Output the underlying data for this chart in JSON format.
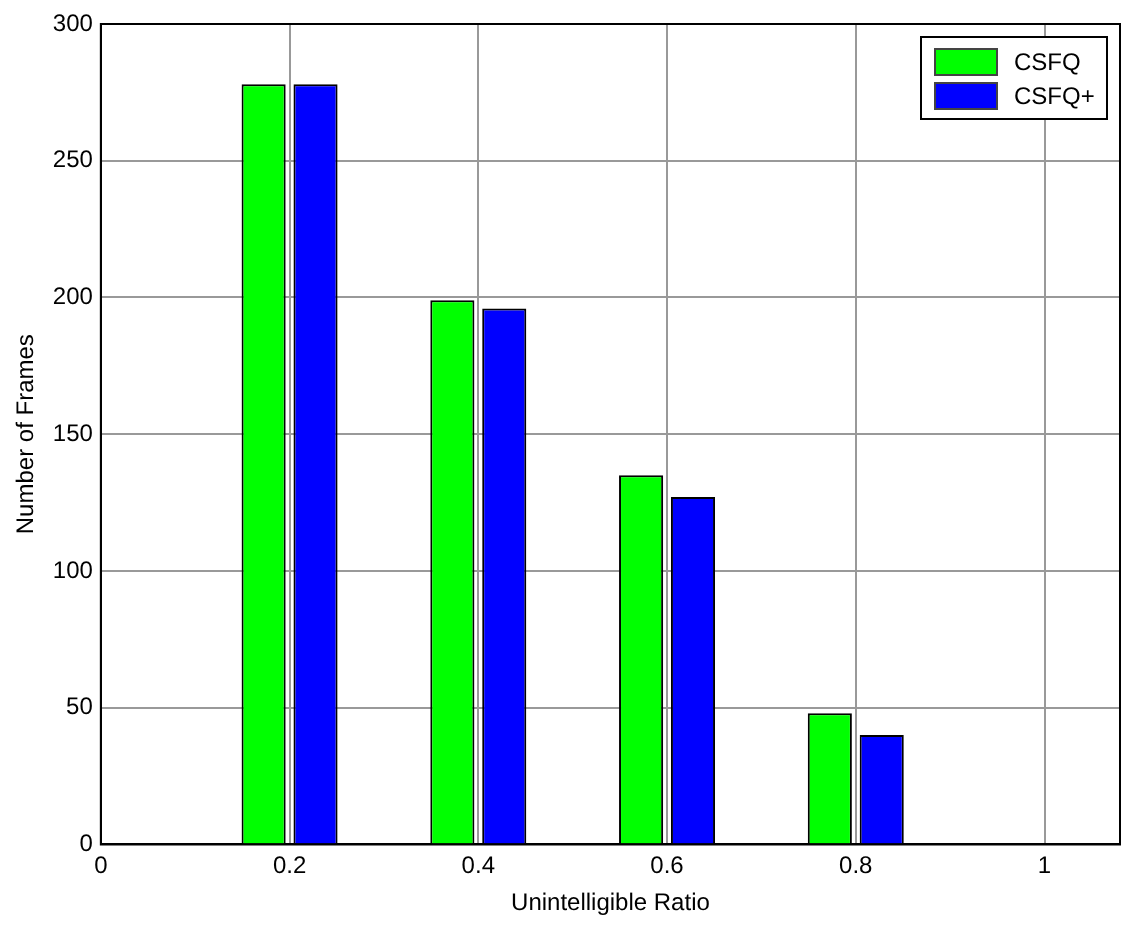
{
  "chart_data": {
    "type": "bar",
    "xlabel": "Unintelligible Ratio",
    "ylabel": "Number of Frames",
    "x": [
      0.2,
      0.4,
      0.6,
      0.8,
      1
    ],
    "series": [
      {
        "name": "CSFQ",
        "color": "#00ff00",
        "values": [
          278,
          199,
          135,
          48,
          0
        ]
      },
      {
        "name": "CSFQ+",
        "color": "#0000ff",
        "values": [
          278,
          196,
          127,
          40,
          0
        ]
      }
    ],
    "xlim": [
      0,
      1.08
    ],
    "xticks": [
      0,
      0.2,
      0.4,
      0.6,
      0.8,
      1
    ],
    "ylim": [
      0,
      300
    ],
    "yticks": [
      0,
      50,
      100,
      150,
      200,
      250,
      300
    ],
    "grid": true,
    "legend": "top right"
  }
}
